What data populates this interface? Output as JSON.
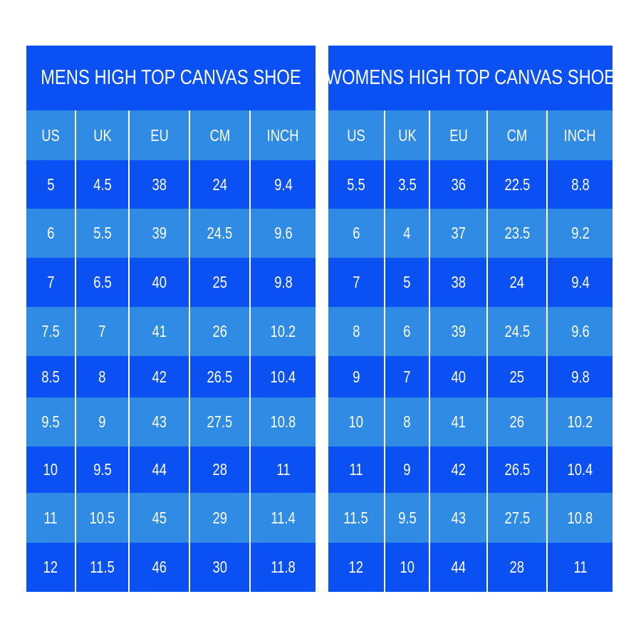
{
  "colors": {
    "dark": "#0A50F2",
    "light": "#2F8BE3",
    "text": "#FFFFFF"
  },
  "tables": [
    {
      "title": "MENS HIGH TOP CANVAS SHOE",
      "columns": [
        "US",
        "UK",
        "EU",
        "CM",
        "INCH"
      ],
      "rows": [
        [
          "5",
          "4.5",
          "38",
          "24",
          "9.4"
        ],
        [
          "6",
          "5.5",
          "39",
          "24.5",
          "9.6"
        ],
        [
          "7",
          "6.5",
          "40",
          "25",
          "9.8"
        ],
        [
          "7.5",
          "7",
          "41",
          "26",
          "10.2"
        ],
        [
          "8.5",
          "8",
          "42",
          "26.5",
          "10.4"
        ],
        [
          "9.5",
          "9",
          "43",
          "27.5",
          "10.8"
        ],
        [
          "10",
          "9.5",
          "44",
          "28",
          "11"
        ],
        [
          "11",
          "10.5",
          "45",
          "29",
          "11.4"
        ],
        [
          "12",
          "11.5",
          "46",
          "30",
          "11.8"
        ]
      ]
    },
    {
      "title": "WOMENS HIGH TOP CANVAS SHOE",
      "columns": [
        "US",
        "UK",
        "EU",
        "CM",
        "INCH"
      ],
      "rows": [
        [
          "5.5",
          "3.5",
          "36",
          "22.5",
          "8.8"
        ],
        [
          "6",
          "4",
          "37",
          "23.5",
          "9.2"
        ],
        [
          "7",
          "5",
          "38",
          "24",
          "9.4"
        ],
        [
          "8",
          "6",
          "39",
          "24.5",
          "9.6"
        ],
        [
          "9",
          "7",
          "40",
          "25",
          "9.8"
        ],
        [
          "10",
          "8",
          "41",
          "26",
          "10.2"
        ],
        [
          "11",
          "9",
          "42",
          "26.5",
          "10.4"
        ],
        [
          "11.5",
          "9.5",
          "43",
          "27.5",
          "10.8"
        ],
        [
          "12",
          "10",
          "44",
          "28",
          "11"
        ]
      ]
    }
  ]
}
